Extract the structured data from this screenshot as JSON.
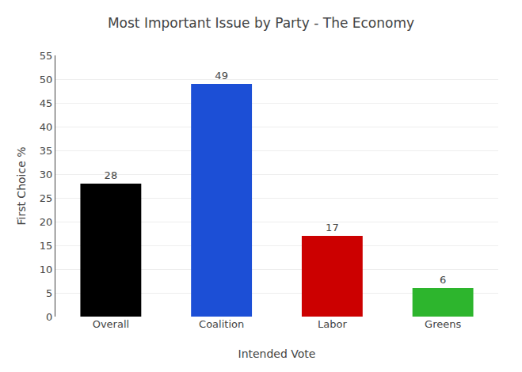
{
  "chart_data": {
    "type": "bar",
    "title": "Most Important Issue by Party - The Economy",
    "categories": [
      "Overall",
      "Coalition",
      "Labor",
      "Greens"
    ],
    "values": [
      28,
      49,
      17,
      6
    ],
    "colors": [
      "#000000",
      "#1c4fd6",
      "#cc0000",
      "#2db52d"
    ],
    "xlabel": "Intended Vote",
    "ylabel": "First Choice %",
    "ylim": [
      0,
      55
    ],
    "yticks": [
      0,
      5,
      10,
      15,
      20,
      25,
      30,
      35,
      40,
      45,
      50,
      55
    ],
    "grid": true,
    "data_labels": true
  }
}
